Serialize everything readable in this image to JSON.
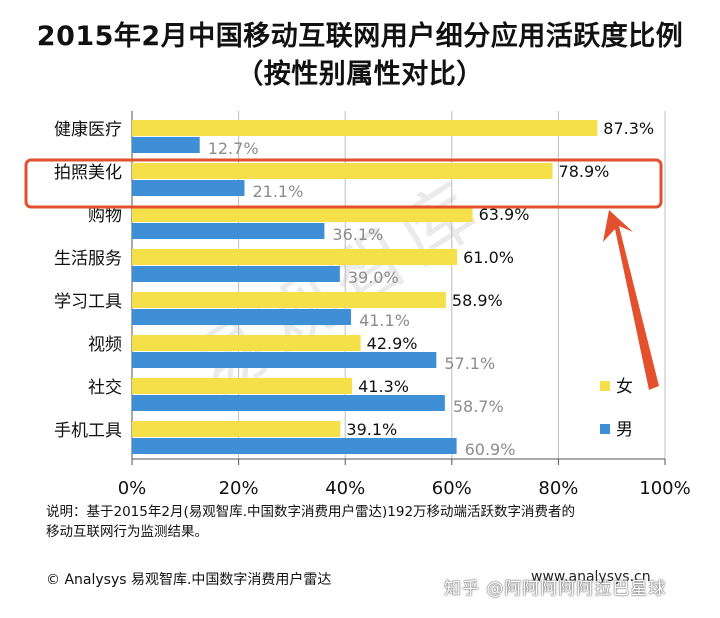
{
  "title_line1": "2015年2月中国移动互联网用户细分应用活跃度比例",
  "title_line2": "（按性别属性对比）",
  "watermark": "易观智库",
  "note_line1": "说明：基于2015年2月(易观智库.中国数字消费用户雷达)192万移动端活跃数字消费者的",
  "note_line2": "移动互联网行为监测结果。",
  "copyright": "© Analysys 易观智库.中国数字消费用户雷达",
  "site": "www.analysys.cn",
  "zhihu": "知乎 @阿阿阿阿阿拉巴星球",
  "colors": {
    "female": "#F5E04A",
    "male": "#3E8FD6",
    "highlight": "#E2502E"
  },
  "chart_data": {
    "type": "bar",
    "orientation": "horizontal",
    "categories": [
      "健康医疗",
      "拍照美化",
      "购物",
      "生活服务",
      "学习工具",
      "视频",
      "社交",
      "手机工具"
    ],
    "series": [
      {
        "name": "女",
        "values": [
          87.3,
          78.9,
          63.9,
          61.0,
          58.9,
          42.9,
          41.3,
          39.1
        ]
      },
      {
        "name": "男",
        "values": [
          12.7,
          21.1,
          36.1,
          39.0,
          41.1,
          57.1,
          58.7,
          60.9
        ]
      }
    ],
    "value_labels": {
      "女": [
        "87.3%",
        "78.9%",
        "63.9%",
        "61.0%",
        "58.9%",
        "42.9%",
        "41.3%",
        "39.1%"
      ],
      "男": [
        "12.7%",
        "21.1%",
        "36.1%",
        "39.0%",
        "41.1%",
        "57.1%",
        "58.7%",
        "60.9%"
      ]
    },
    "xlim": [
      0,
      100
    ],
    "xticks": [
      "0%",
      "20%",
      "40%",
      "60%",
      "80%",
      "100%"
    ],
    "grid": true,
    "legend_position": "right",
    "highlighted_category": "拍照美化"
  }
}
